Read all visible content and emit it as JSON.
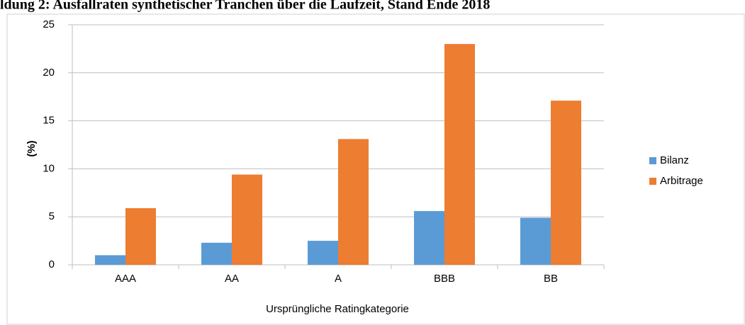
{
  "chart_data": {
    "type": "bar",
    "title": "ldung 2: Ausfallraten synthetischer Tranchen über die Laufzeit, Stand Ende 2018",
    "x_label": "Ursprüngliche  Ratingkategorie",
    "y_label": "(%)",
    "categories": [
      "AAA",
      "AA",
      "A",
      "BBB",
      "BB"
    ],
    "series": [
      {
        "name": "Bilanz",
        "color": "#5b9bd5",
        "values": [
          1.0,
          2.3,
          2.5,
          5.6,
          4.9
        ]
      },
      {
        "name": "Arbitrage",
        "color": "#ed7d31",
        "values": [
          5.9,
          9.4,
          13.1,
          23.0,
          17.1
        ]
      }
    ],
    "ylim": [
      0,
      25
    ],
    "yticks": [
      0,
      5,
      10,
      15,
      20,
      25
    ],
    "grid": true,
    "legend": "right"
  }
}
